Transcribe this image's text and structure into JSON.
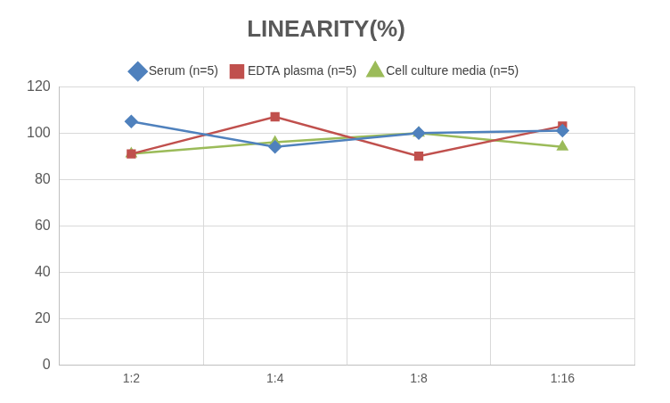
{
  "chart_data": {
    "type": "line",
    "title": "LINEARITY(%)",
    "categories": [
      "1:2",
      "1:4",
      "1:8",
      "1:16"
    ],
    "series": [
      {
        "name": "Serum (n=5)",
        "color": "#4f81bd",
        "marker": "diamond",
        "values": [
          105,
          94,
          100,
          101
        ]
      },
      {
        "name": "EDTA plasma (n=5)",
        "color": "#c0504d",
        "marker": "square",
        "values": [
          91,
          107,
          90,
          103
        ]
      },
      {
        "name": "Cell culture media (n=5)",
        "color": "#9bbb59",
        "marker": "triangle",
        "values": [
          91,
          96,
          100,
          94
        ]
      }
    ],
    "ylim": [
      0,
      120
    ],
    "yticks": [
      0,
      20,
      40,
      60,
      80,
      100,
      120
    ],
    "grid": true,
    "legend": "top"
  }
}
